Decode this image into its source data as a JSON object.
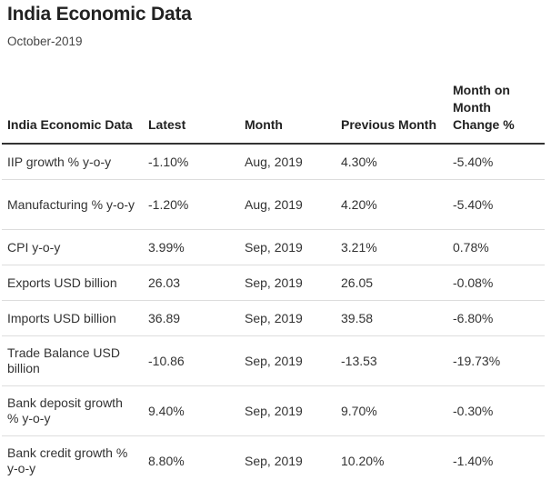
{
  "title": "India Economic Data",
  "subtitle": "October-2019",
  "table": {
    "headers": [
      "India Economic Data",
      "Latest",
      "Month",
      "Previous Month",
      "Month on Month Change %"
    ],
    "rows": [
      [
        "IIP growth % y-o-y",
        "-1.10%",
        "Aug, 2019",
        "4.30%",
        "-5.40%"
      ],
      [
        "Manufacturing % y-o-y",
        "-1.20%",
        "Aug, 2019",
        "4.20%",
        "-5.40%"
      ],
      [
        "CPI y-o-y",
        "3.99%",
        "Sep, 2019",
        "3.21%",
        "0.78%"
      ],
      [
        "Exports USD billion",
        "26.03",
        "Sep, 2019",
        "26.05",
        "-0.08%"
      ],
      [
        "Imports USD billion",
        "36.89",
        "Sep, 2019",
        "39.58",
        "-6.80%"
      ],
      [
        "Trade Balance USD billion",
        "-10.86",
        "Sep, 2019",
        "-13.53",
        "-19.73%"
      ],
      [
        "Bank deposit growth % y-o-y",
        "9.40%",
        "Sep, 2019",
        "9.70%",
        "-0.30%"
      ],
      [
        "Bank credit growth % y-o-y",
        "8.80%",
        "Sep, 2019",
        "10.20%",
        "-1.40%"
      ]
    ]
  }
}
